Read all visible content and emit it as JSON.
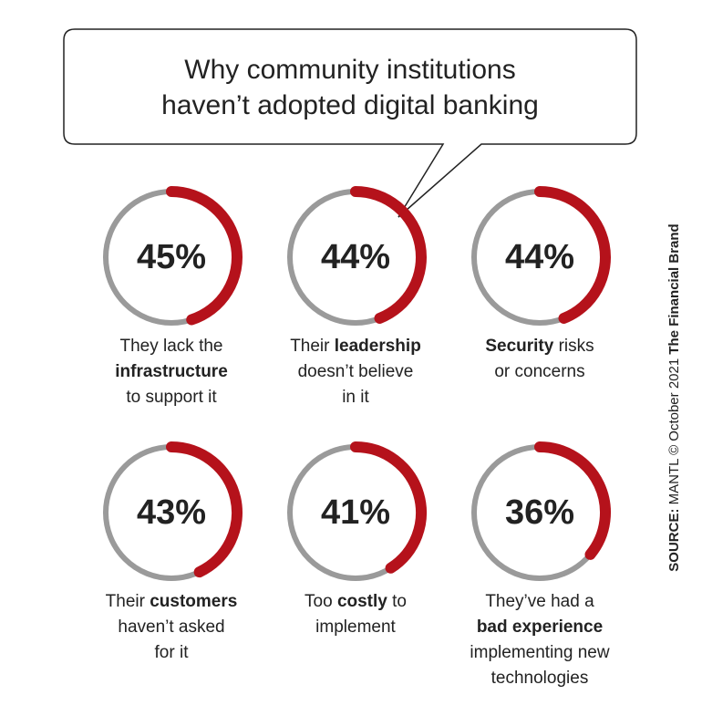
{
  "chart_data": {
    "type": "donut",
    "title": [
      "Why community institutions",
      "haven’t adopted digital banking"
    ],
    "values": [
      45,
      44,
      44,
      43,
      41,
      36
    ],
    "value_labels": [
      "45%",
      "44%",
      "44%",
      "43%",
      "41%",
      "36%"
    ],
    "ylim": [
      0,
      100
    ],
    "color": "#b5121b",
    "track_color": "#9a9a9a",
    "categories": [
      [
        [
          {
            "text": "They lack the",
            "bold": false
          }
        ],
        [
          {
            "text": "infrastructure",
            "bold": true
          }
        ],
        [
          {
            "text": "to support it",
            "bold": false
          }
        ]
      ],
      [
        [
          {
            "text": "Their ",
            "bold": false
          },
          {
            "text": "leadership",
            "bold": true
          }
        ],
        [
          {
            "text": "doesn’t believe",
            "bold": false
          }
        ],
        [
          {
            "text": "in it",
            "bold": false
          }
        ]
      ],
      [
        [
          {
            "text": "Security",
            "bold": true
          },
          {
            "text": " risks",
            "bold": false
          }
        ],
        [
          {
            "text": "or concerns",
            "bold": false
          }
        ]
      ],
      [
        [
          {
            "text": "Their ",
            "bold": false
          },
          {
            "text": "customers",
            "bold": true
          }
        ],
        [
          {
            "text": "haven’t asked",
            "bold": false
          }
        ],
        [
          {
            "text": "for it",
            "bold": false
          }
        ]
      ],
      [
        [
          {
            "text": "Too ",
            "bold": false
          },
          {
            "text": "costly",
            "bold": true
          },
          {
            "text": " to",
            "bold": false
          }
        ],
        [
          {
            "text": "implement",
            "bold": false
          }
        ]
      ],
      [
        [
          {
            "text": "They’ve had a",
            "bold": false
          }
        ],
        [
          {
            "text": "bad experience",
            "bold": true
          }
        ],
        [
          {
            "text": "implementing new",
            "bold": false
          }
        ],
        [
          {
            "text": "technologies",
            "bold": false
          }
        ]
      ]
    ]
  },
  "source": [
    {
      "text": "SOURCE:",
      "bold": true
    },
    {
      "text": " MANTL © October 2021 ",
      "bold": false
    },
    {
      "text": "The Financial Brand",
      "bold": true
    }
  ]
}
